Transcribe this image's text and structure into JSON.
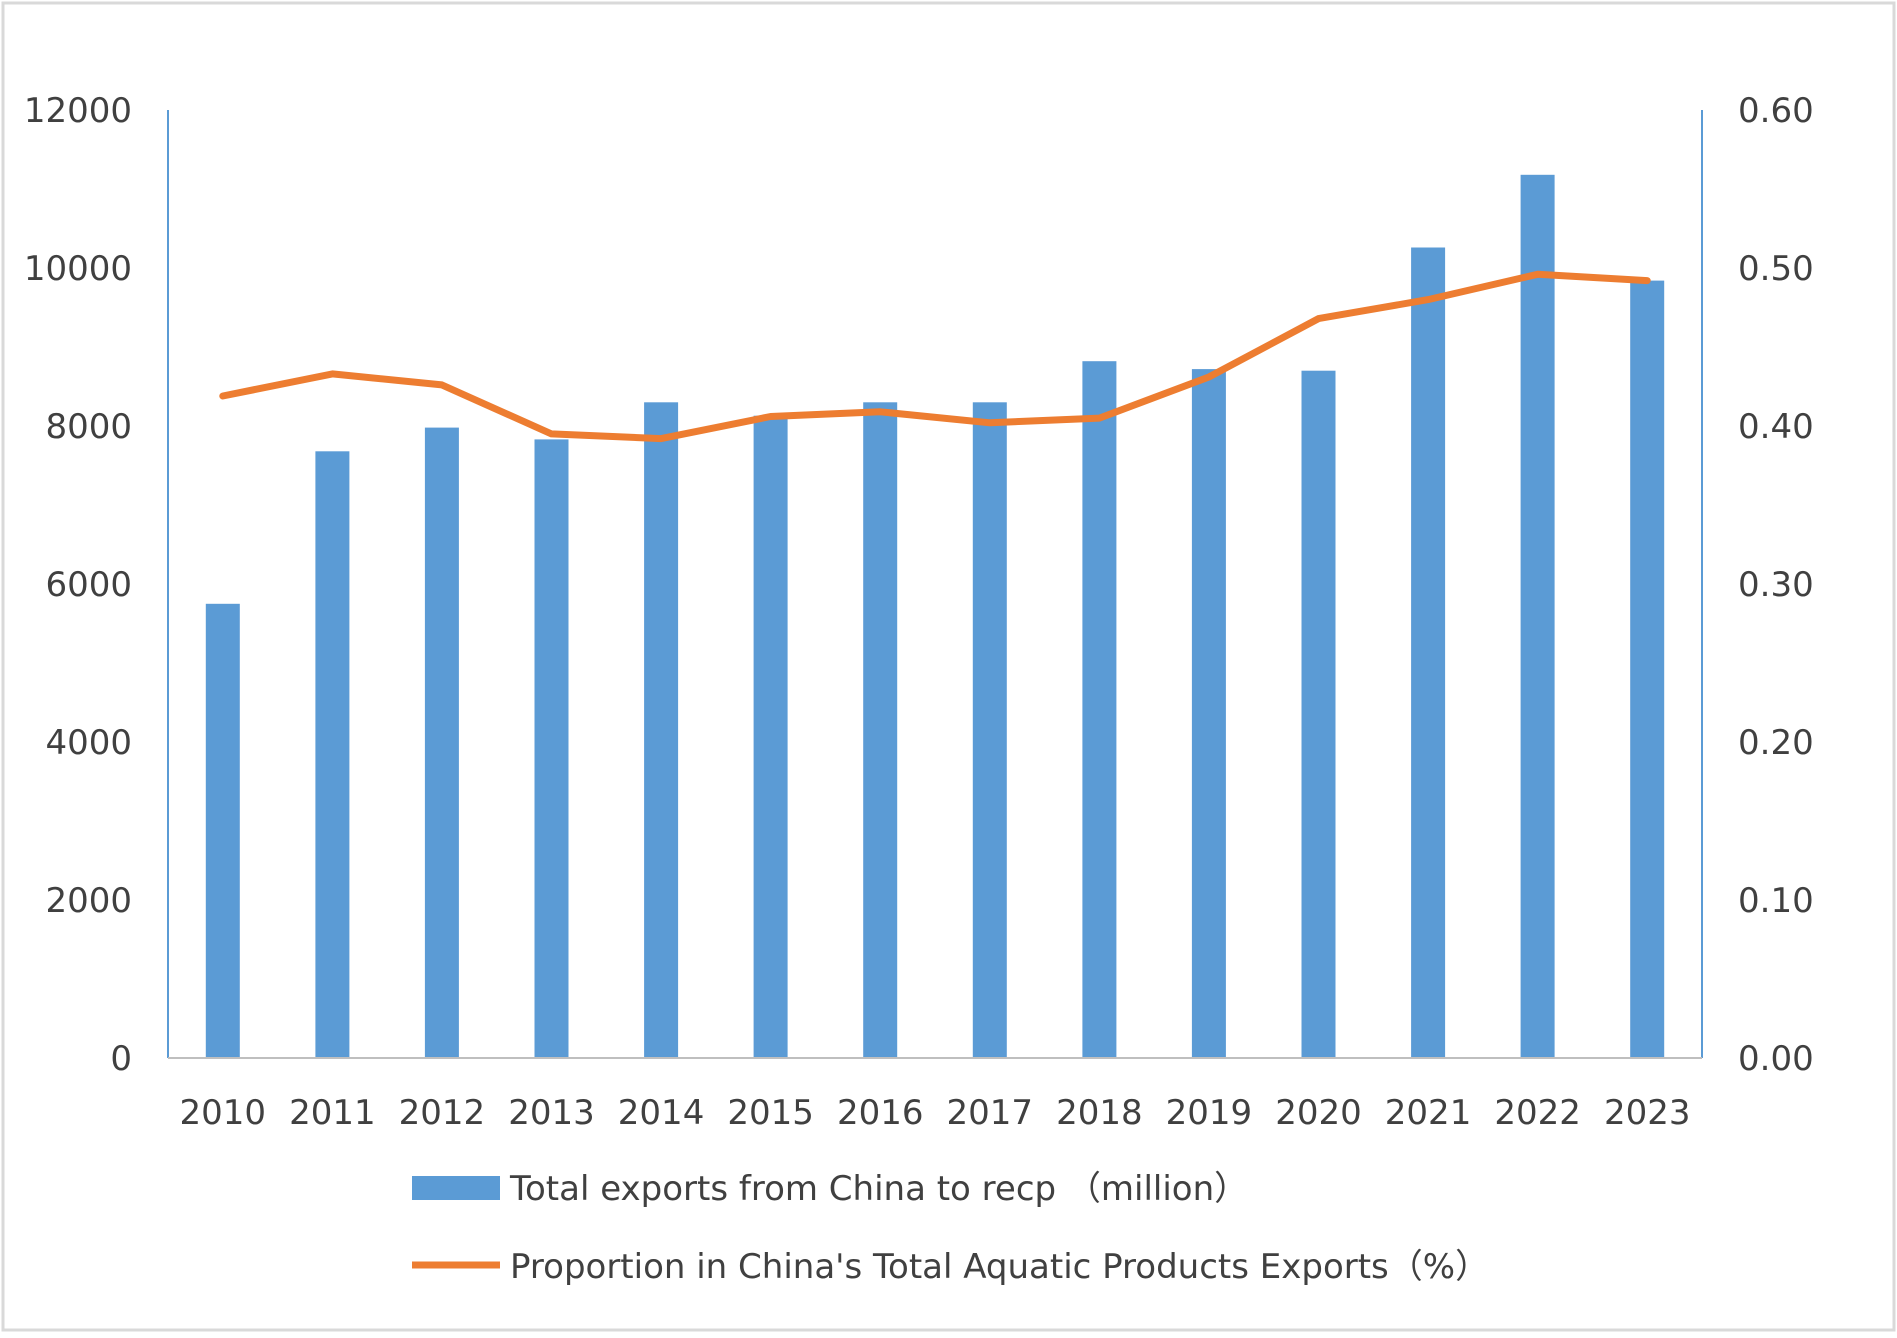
{
  "chart_data": {
    "type": "bar",
    "categories": [
      "2010",
      "2011",
      "2012",
      "2013",
      "2014",
      "2015",
      "2016",
      "2017",
      "2018",
      "2019",
      "2020",
      "2021",
      "2022",
      "2023"
    ],
    "series": [
      {
        "name": "Total exports from China to recp （million）",
        "type": "bar",
        "axis": "left",
        "color": "#5B9BD5",
        "values": [
          5750,
          7680,
          7980,
          7830,
          8300,
          8130,
          8300,
          8300,
          8820,
          8720,
          8700,
          10260,
          11180,
          9840
        ]
      },
      {
        "name": "Proportion in China's Total Aquatic Products Exports（%）",
        "type": "line",
        "axis": "right",
        "color": "#ED7D31",
        "values": [
          0.419,
          0.433,
          0.426,
          0.395,
          0.392,
          0.406,
          0.409,
          0.402,
          0.405,
          0.431,
          0.468,
          0.48,
          0.496,
          0.492
        ]
      }
    ],
    "y_left": {
      "min": 0,
      "max": 12000,
      "ticks": [
        "0",
        "2000",
        "4000",
        "6000",
        "8000",
        "10000",
        "12000"
      ]
    },
    "y_right": {
      "min": 0,
      "max": 0.6,
      "ticks": [
        "0.00",
        "0.10",
        "0.20",
        "0.30",
        "0.40",
        "0.50",
        "0.60"
      ]
    },
    "title": "",
    "xlabel": "",
    "ylabel": "",
    "grid": false,
    "legend_position": "bottom",
    "axis_color": "#5B9BD5",
    "frame_color": "#D9D9D9"
  }
}
